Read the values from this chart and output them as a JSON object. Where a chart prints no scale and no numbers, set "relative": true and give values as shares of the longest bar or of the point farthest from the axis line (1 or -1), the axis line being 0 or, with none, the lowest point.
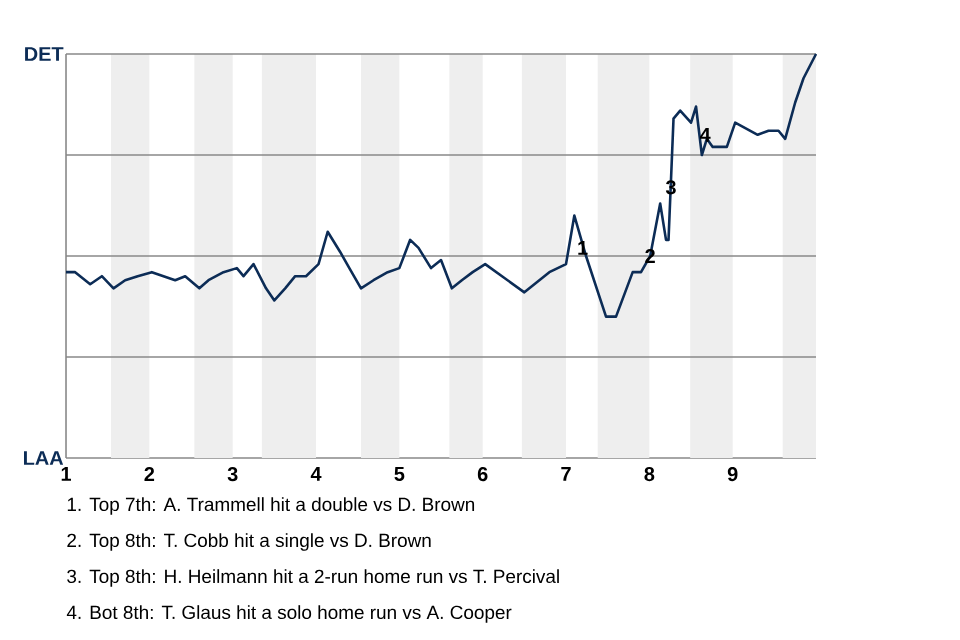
{
  "chart_data": {
    "type": "line",
    "color": "#0c2c56",
    "marker": "none",
    "line_style": "solid",
    "relative": true,
    "x": [
      1.0,
      1.11,
      1.29,
      1.43,
      1.57,
      1.71,
      1.86,
      2.03,
      2.17,
      2.31,
      2.43,
      2.6,
      2.71,
      2.89,
      3.05,
      3.13,
      3.25,
      3.4,
      3.5,
      3.63,
      3.75,
      3.88,
      4.03,
      4.14,
      4.29,
      4.4,
      4.54,
      4.69,
      4.86,
      5.0,
      5.13,
      5.23,
      5.38,
      5.5,
      5.63,
      5.75,
      5.88,
      6.03,
      6.5,
      6.8,
      7.0,
      7.1,
      7.24,
      7.48,
      7.6,
      7.8,
      7.9,
      8.01,
      8.13,
      8.2,
      8.23,
      8.29,
      8.37,
      8.5,
      8.56,
      8.63,
      8.69,
      8.76,
      8.93,
      9.03,
      9.3,
      9.43,
      9.55,
      9.63,
      9.75,
      9.85,
      10.0
    ],
    "values": [
      0.46,
      0.46,
      0.43,
      0.45,
      0.42,
      0.44,
      0.45,
      0.46,
      0.45,
      0.44,
      0.45,
      0.42,
      0.44,
      0.46,
      0.47,
      0.45,
      0.48,
      0.42,
      0.39,
      0.42,
      0.45,
      0.45,
      0.48,
      0.56,
      0.51,
      0.47,
      0.42,
      0.44,
      0.46,
      0.47,
      0.54,
      0.52,
      0.47,
      0.49,
      0.42,
      0.44,
      0.46,
      0.48,
      0.41,
      0.46,
      0.48,
      0.6,
      0.5,
      0.35,
      0.35,
      0.46,
      0.46,
      0.5,
      0.63,
      0.54,
      0.54,
      0.84,
      0.86,
      0.83,
      0.87,
      0.75,
      0.79,
      0.77,
      0.77,
      0.83,
      0.8,
      0.81,
      0.81,
      0.79,
      0.88,
      0.94,
      1.0
    ],
    "xlim": [
      1,
      10
    ],
    "xticks": [
      1,
      2,
      3,
      4,
      5,
      6,
      7,
      8,
      9
    ],
    "ref_lines": [
      {
        "axis": "y",
        "value": 0.25,
        "color": "#888888"
      },
      {
        "axis": "y",
        "value": 0.5,
        "color": "#888888"
      },
      {
        "axis": "y",
        "value": 0.75,
        "color": "#888888"
      },
      {
        "axis": "y",
        "value": 1,
        "color": "#888888"
      }
    ],
    "bands": [
      {
        "axis": "x",
        "from": 1.54,
        "to": 2,
        "color": "#eeeeee"
      },
      {
        "axis": "x",
        "from": 2.54,
        "to": 3,
        "color": "#eeeeee"
      },
      {
        "axis": "x",
        "from": 3.35,
        "to": 4,
        "color": "#eeeeee"
      },
      {
        "axis": "x",
        "from": 4.54,
        "to": 5,
        "color": "#eeeeee"
      },
      {
        "axis": "x",
        "from": 5.6,
        "to": 6,
        "color": "#eeeeee"
      },
      {
        "axis": "x",
        "from": 6.47,
        "to": 7,
        "color": "#eeeeee"
      },
      {
        "axis": "x",
        "from": 7.38,
        "to": 8,
        "color": "#eeeeee"
      },
      {
        "axis": "x",
        "from": 8.49,
        "to": 9,
        "color": "#eeeeee"
      },
      {
        "axis": "x",
        "from": 9.6,
        "to": 10,
        "color": "#eeeeee"
      }
    ],
    "annotations": [
      "DET",
      "LAA",
      {
        "text": "1",
        "x": 7.2,
        "y": 0.52
      },
      {
        "text": "2",
        "x": 8.01,
        "y": 0.5
      },
      {
        "text": "3",
        "x": 8.26,
        "y": 0.67
      },
      {
        "text": "4",
        "x": 8.67,
        "y": 0.8
      },
      "1. Top 7th: A. Trammell hit a double vs D. Brown",
      "2. Top 8th: T. Cobb hit a single vs D. Brown",
      "3. Top 8th: H. Heilmann hit a 2-run home run vs T. Percival",
      "4. Bot 8th: T. Glaus hit a solo home run vs A. Cooper"
    ]
  }
}
